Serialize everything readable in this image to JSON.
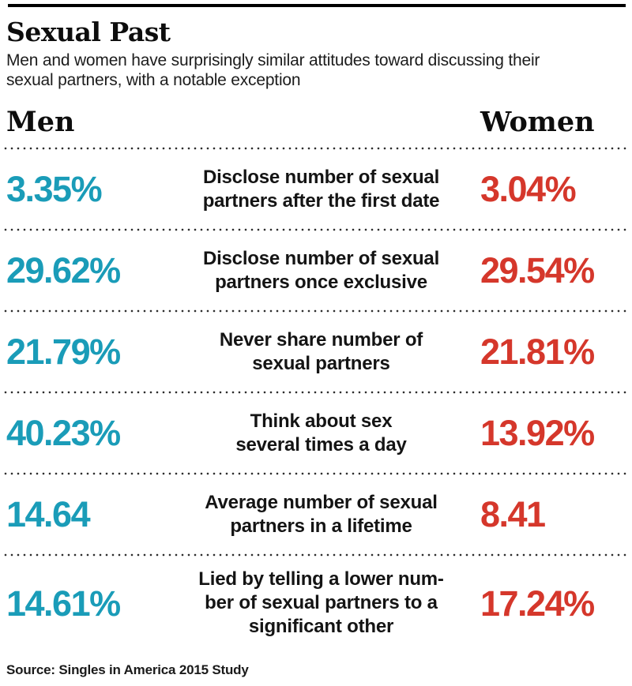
{
  "header": {
    "title": "Sexual Past",
    "subtitle": "Men and women have surprisingly similar attitudes toward discussing their\nsexual partners, with a notable exception"
  },
  "columns": {
    "men_label": "Men",
    "women_label": "Women"
  },
  "rows": [
    {
      "men": "3.35%",
      "label": "Disclose number of sexual\npartners after the first date",
      "women": "3.04%"
    },
    {
      "men": "29.62%",
      "label": "Disclose number of sexual\npartners once exclusive",
      "women": "29.54%"
    },
    {
      "men": "21.79%",
      "label": "Never share number of\nsexual partners",
      "women": "21.81%"
    },
    {
      "men": "40.23%",
      "label": "Think about sex\nseveral times a day",
      "women": "13.92%"
    },
    {
      "men": "14.64",
      "label": "Average number of sexual\npartners in a lifetime",
      "women": "8.41"
    },
    {
      "men": "14.61%",
      "label": "Lied by telling a lower num-\nber of sexual partners to a\nsignificant other",
      "women": "17.24%"
    }
  ],
  "source": "Source: Singles in America 2015 Study",
  "colors": {
    "men_accent": "#1a9cb8",
    "women_accent": "#d5372b",
    "top_rule": "#000000",
    "dots": "#2e2e2e"
  },
  "chart_data": {
    "type": "table",
    "title": "Sexual Past",
    "subtitle": "Men and women have surprisingly similar attitudes toward discussing their sexual partners, with a notable exception",
    "categories": [
      "Disclose number of sexual partners after the first date",
      "Disclose number of sexual partners once exclusive",
      "Never share number of sexual partners",
      "Think about sex several times a day",
      "Average number of sexual partners in a lifetime",
      "Lied by telling a lower number of sexual partners to a significant other"
    ],
    "series": [
      {
        "name": "Men",
        "color": "#1a9cb8",
        "values": [
          3.35,
          29.62,
          21.79,
          40.23,
          14.64,
          14.61
        ],
        "value_labels": [
          "3.35%",
          "29.62%",
          "21.79%",
          "40.23%",
          "14.64",
          "14.61%"
        ]
      },
      {
        "name": "Women",
        "color": "#d5372b",
        "values": [
          3.04,
          29.54,
          21.81,
          13.92,
          8.41,
          17.24
        ],
        "value_labels": [
          "3.04%",
          "29.54%",
          "21.81%",
          "13.92%",
          "8.41",
          "17.24%"
        ]
      }
    ],
    "source": "Source: Singles in America 2015 Study",
    "legend_position": "column-headers",
    "grid": "dotted-row-separators"
  }
}
